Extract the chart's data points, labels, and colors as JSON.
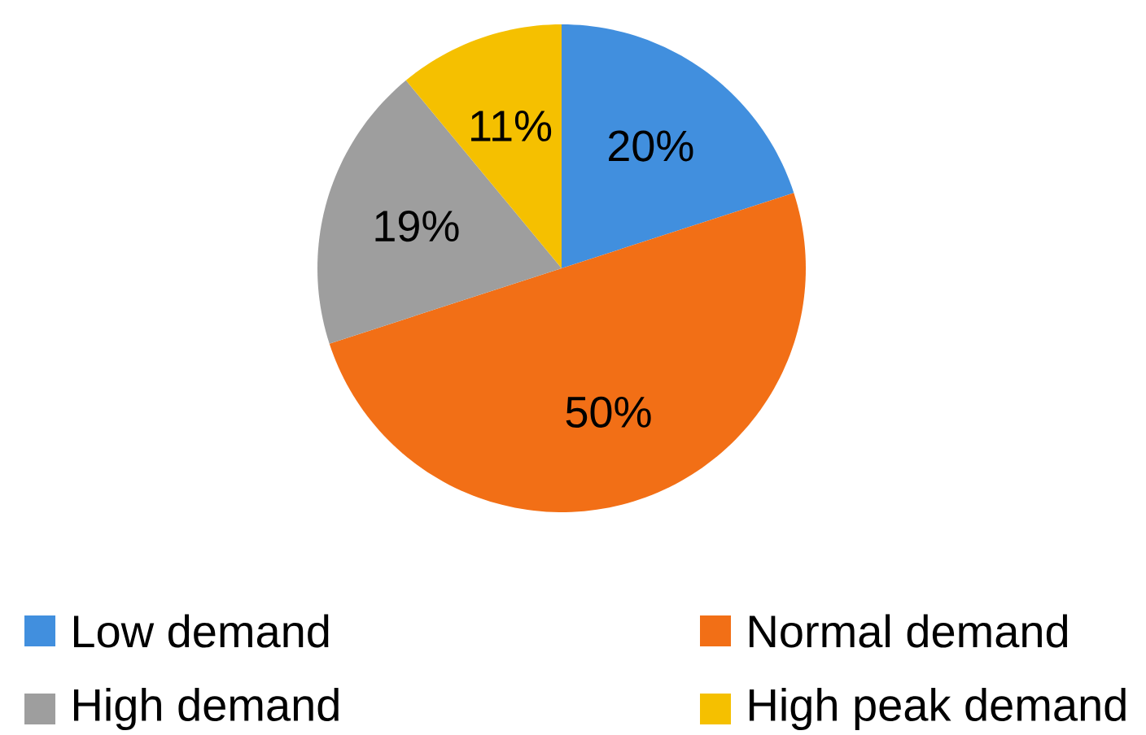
{
  "chart_data": {
    "type": "pie",
    "categories": [
      "Low demand",
      "Normal demand",
      "High demand",
      "High peak demand"
    ],
    "values": [
      20,
      50,
      19,
      11
    ],
    "colors": [
      "#418fde",
      "#f26f16",
      "#9e9e9e",
      "#f5c000"
    ],
    "value_labels": [
      "20%",
      "50%",
      "19%",
      "11%"
    ],
    "legend": "bottom"
  }
}
